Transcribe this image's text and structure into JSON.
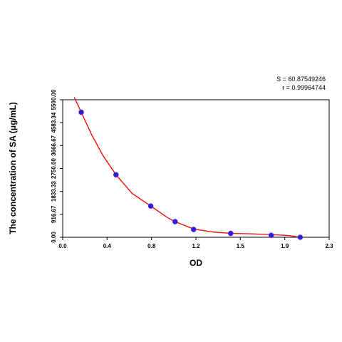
{
  "chart_data": {
    "type": "scatter",
    "xlabel": "OD",
    "ylabel": "The concentration of SA (μg/mL)",
    "xlim": [
      0.0,
      2.3
    ],
    "ylim": [
      0.0,
      5500.0
    ],
    "x_ticks": [
      "0.0",
      "0.4",
      "0.8",
      "1.2",
      "1.5",
      "1.9",
      "2.3"
    ],
    "x_tick_values": [
      0.0,
      0.383,
      0.767,
      1.15,
      1.533,
      1.917,
      2.3
    ],
    "y_ticks": [
      "0.00",
      "916.67",
      "1833.33",
      "2750.00",
      "3666.67",
      "4583.34",
      "5500.00"
    ],
    "y_tick_values": [
      0.0,
      916.67,
      1833.33,
      2750.0,
      3666.67,
      4583.34,
      5500.0
    ],
    "stats": {
      "s": "S = 60.87549246",
      "r": "r = 0.99964744"
    },
    "series": [
      {
        "kind": "points",
        "color": "#2222dd",
        "x": [
          0.16,
          0.46,
          0.76,
          0.97,
          1.13,
          1.45,
          1.8,
          2.05
        ],
        "y": [
          5000,
          2500,
          1250,
          625,
          312,
          156,
          78,
          0
        ]
      },
      {
        "kind": "fit",
        "color": "#ee1111",
        "x": [
          0.1,
          0.16,
          0.25,
          0.35,
          0.46,
          0.6,
          0.76,
          0.9,
          0.97,
          1.13,
          1.3,
          1.45,
          1.6,
          1.8,
          1.95,
          2.05
        ],
        "y": [
          5600,
          5000,
          4100,
          3250,
          2500,
          1750,
          1250,
          800,
          625,
          330,
          210,
          160,
          140,
          110,
          70,
          0
        ]
      }
    ]
  }
}
